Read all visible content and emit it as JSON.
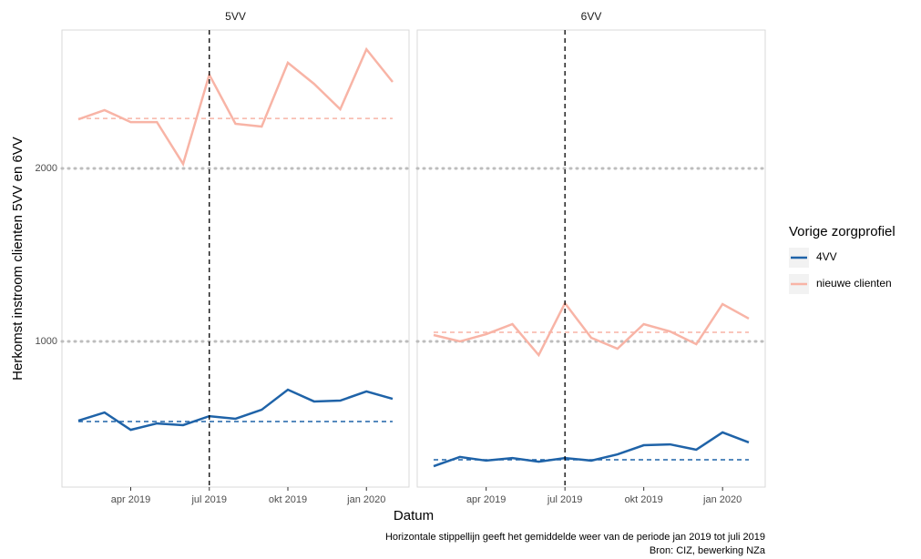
{
  "chart_data": {
    "type": "line",
    "y_label": "Herkomst instroom clienten 5VV en 6VV",
    "x_label": "Datum",
    "legend_title": "Vorige zorgprofiel",
    "caption": [
      "Horizontale stippellijn geeft het gemiddelde weer van de periode jan 2019 tot juli 2019",
      "Bron: CIZ, bewerking NZa"
    ],
    "ylim": [
      158,
      2800
    ],
    "yticks": [
      1000,
      2000
    ],
    "grid": true,
    "x": [
      "2019-02",
      "2019-03",
      "2019-04",
      "2019-05",
      "2019-06",
      "2019-07",
      "2019-08",
      "2019-09",
      "2019-10",
      "2019-11",
      "2019-12",
      "2020-01",
      "2020-02"
    ],
    "xticks": [
      {
        "value": "2019-04",
        "label": "apr 2019"
      },
      {
        "value": "2019-07",
        "label": "jul 2019"
      },
      {
        "value": "2019-10",
        "label": "okt 2019"
      },
      {
        "value": "2020-01",
        "label": "jan 2020"
      }
    ],
    "vline": "2019-07",
    "facets": [
      {
        "title": "5VV",
        "series": [
          {
            "name": "4VV",
            "color": "#1f63a8",
            "values": [
              542,
              589,
              489,
              526,
              516,
              568,
              553,
              605,
              721,
              653,
              658,
              711,
              668
            ],
            "mean": 537
          },
          {
            "name": "nieuwe clienten",
            "color": "#f8b4a6",
            "values": [
              2284,
              2337,
              2268,
              2268,
              2026,
              2542,
              2258,
              2242,
              2611,
              2489,
              2342,
              2689,
              2500
            ],
            "mean": 2289
          }
        ]
      },
      {
        "title": "6VV",
        "series": [
          {
            "name": "4VV",
            "color": "#1f63a8",
            "values": [
              279,
              332,
              311,
              326,
              305,
              326,
              311,
              347,
              400,
              405,
              374,
              474,
              416
            ],
            "mean": 316
          },
          {
            "name": "nieuwe clienten",
            "color": "#f8b4a6",
            "values": [
              1037,
              1000,
              1042,
              1100,
              921,
              1221,
              1021,
              958,
              1100,
              1058,
              984,
              1216,
              1132
            ],
            "mean": 1053
          }
        ]
      }
    ]
  }
}
